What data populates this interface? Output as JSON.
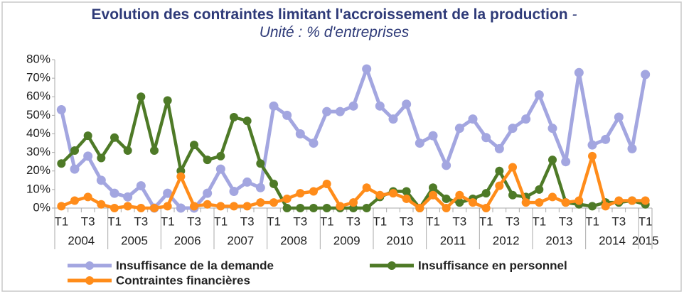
{
  "chart_data": {
    "type": "line",
    "title": "Evolution des contraintes limitant  l'accroissement de la production",
    "subtitle": "- Unité : % d'entreprises",
    "categories": [
      "T1",
      null,
      "T3",
      null,
      "T1",
      null,
      "T3",
      null,
      "T1",
      null,
      "T3",
      null,
      "T1",
      null,
      "T3",
      null,
      "T1",
      null,
      "T3",
      null,
      "T1",
      null,
      "T3",
      null,
      "T1",
      null,
      "T3",
      null,
      "T1",
      null,
      "T3",
      null,
      "T1",
      null,
      "T3",
      null,
      "T1",
      null,
      "T3",
      null,
      "T1",
      null,
      "T3",
      null,
      "T1"
    ],
    "years": [
      "2004",
      "2005",
      "2006",
      "2007",
      "2008",
      "2009",
      "2010",
      "2011",
      "2012",
      "2013",
      "2014",
      "2015"
    ],
    "series": [
      {
        "name": "Insuffisance de la demande",
        "color": "#a3a6e0",
        "values": [
          53,
          21,
          28,
          15,
          8,
          6,
          12,
          0,
          8,
          0,
          0,
          8,
          21,
          9,
          14,
          11,
          55,
          50,
          40,
          35,
          52,
          52,
          55,
          75,
          55,
          48,
          56,
          35,
          39,
          23,
          43,
          48,
          38,
          32,
          43,
          48,
          61,
          43,
          25,
          73,
          34,
          37,
          49,
          32,
          72
        ]
      },
      {
        "name": "Insuffisance en personnel",
        "color": "#4e7a27",
        "values": [
          24,
          31,
          39,
          27,
          38,
          31,
          60,
          31,
          58,
          20,
          34,
          26,
          28,
          49,
          47,
          24,
          13,
          0,
          0,
          0,
          0,
          0,
          0,
          0,
          6,
          9,
          9,
          0,
          11,
          5,
          3,
          5,
          8,
          20,
          7,
          6,
          10,
          26,
          3,
          2,
          1,
          3,
          3,
          4,
          2
        ]
      },
      {
        "name": "Contraintes financières",
        "color": "#ff8c1a",
        "values": [
          1,
          4,
          6,
          2,
          0,
          1,
          0,
          0,
          1,
          17,
          1,
          2,
          1,
          1,
          1,
          3,
          3,
          5,
          8,
          9,
          13,
          1,
          3,
          11,
          7,
          8,
          5,
          0,
          7,
          0,
          7,
          3,
          0,
          12,
          22,
          3,
          3,
          6,
          3,
          4,
          28,
          1,
          4,
          4,
          4
        ]
      }
    ],
    "ylim": [
      0,
      80
    ],
    "yticks": [
      {
        "value": 0,
        "label": "0%"
      },
      {
        "value": 10,
        "label": "10%"
      },
      {
        "value": 20,
        "label": "20%"
      },
      {
        "value": 30,
        "label": "30%"
      },
      {
        "value": 40,
        "label": "40%"
      },
      {
        "value": 50,
        "label": "50%"
      },
      {
        "value": 60,
        "label": "60%"
      },
      {
        "value": 70,
        "label": "70%"
      },
      {
        "value": 80,
        "label": "80%"
      }
    ],
    "grid": false,
    "legend": "bottom"
  }
}
